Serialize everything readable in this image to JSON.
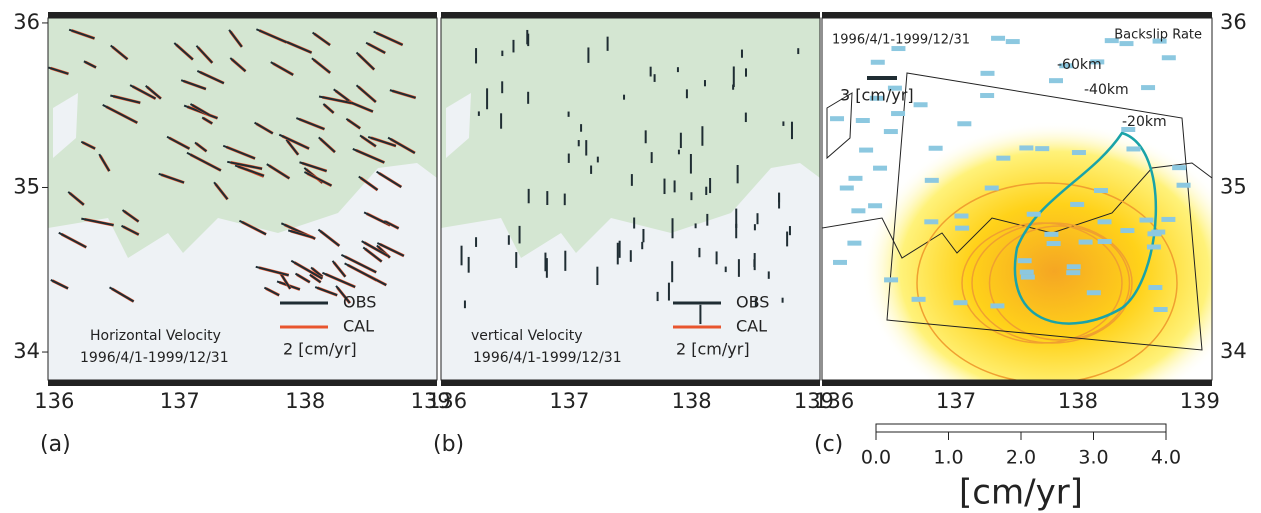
{
  "panels": [
    {
      "label": "(a)",
      "title": "Horizontal Velocity",
      "period": "1996/4/1-1999/12/31",
      "obs": "OBS",
      "cal": "CAL",
      "scale": "2 [cm/yr]",
      "xlim": [
        135.95,
        139.05
      ],
      "xticks": [
        136,
        137,
        138,
        139
      ]
    },
    {
      "label": "(b)",
      "title": "vertical Velocity",
      "period": "1996/4/1-1999/12/31",
      "obs": "OBS",
      "cal": "CAL",
      "scale": "2 [cm/yr]",
      "xlim": [
        135.95,
        139.05
      ],
      "xticks": [
        136,
        137,
        138,
        139
      ]
    },
    {
      "label": "(c)",
      "title": "Backslip Rate",
      "period": "1996/4/1-1999/12/31",
      "scale": "3 [cm/yr]",
      "contours": [
        "-60km",
        "-40km",
        "-20km"
      ],
      "xlim": [
        135.9,
        139.1
      ],
      "xticks": [
        136,
        137,
        138,
        139
      ]
    }
  ],
  "ylim": [
    33.83,
    36.03
  ],
  "yticks": [
    36,
    35,
    34
  ],
  "colorbar": {
    "lim": [
      0,
      4
    ],
    "ticks": [
      {
        "value": 0,
        "label": "0.0"
      },
      {
        "value": 1,
        "label": "1.0"
      },
      {
        "value": 2,
        "label": "2.0"
      },
      {
        "value": 3,
        "label": "3.0"
      },
      {
        "value": 4,
        "label": "4.0"
      }
    ],
    "unit": "[cm/yr]"
  }
}
